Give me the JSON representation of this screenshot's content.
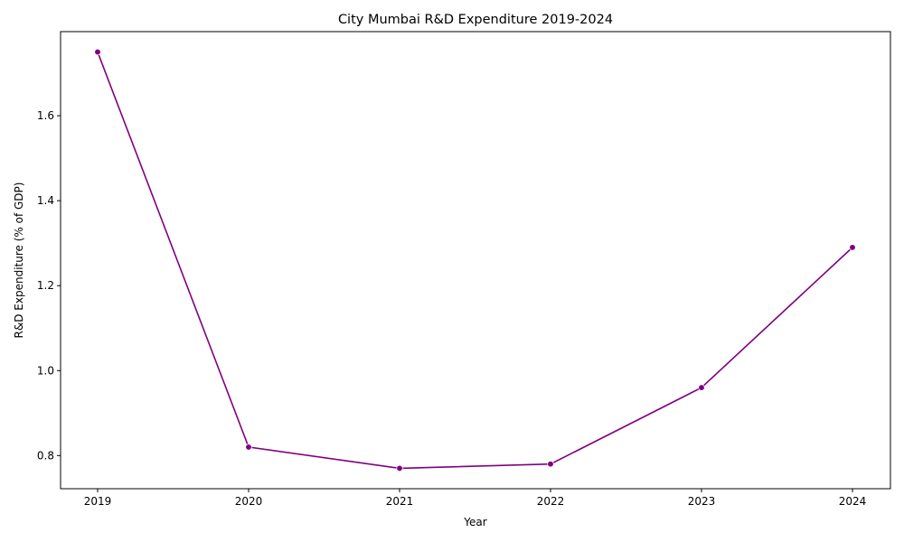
{
  "chart_data": {
    "type": "line",
    "title": "City Mumbai R&D Expenditure 2019-2024",
    "xlabel": "Year",
    "ylabel": "R&D Expenditure (% of GDP)",
    "x": [
      "2019",
      "2020",
      "2021",
      "2022",
      "2023",
      "2024"
    ],
    "series": [
      {
        "values": [
          1.75,
          0.82,
          0.77,
          0.78,
          0.96,
          1.29
        ]
      }
    ],
    "ylim": [
      0.722,
      1.798
    ],
    "yticks": [
      "0.8",
      "1.0",
      "1.2",
      "1.4",
      "1.6"
    ],
    "grid": false,
    "legend": "none",
    "colors": {
      "line": "#800080",
      "axis": "#000000"
    }
  }
}
